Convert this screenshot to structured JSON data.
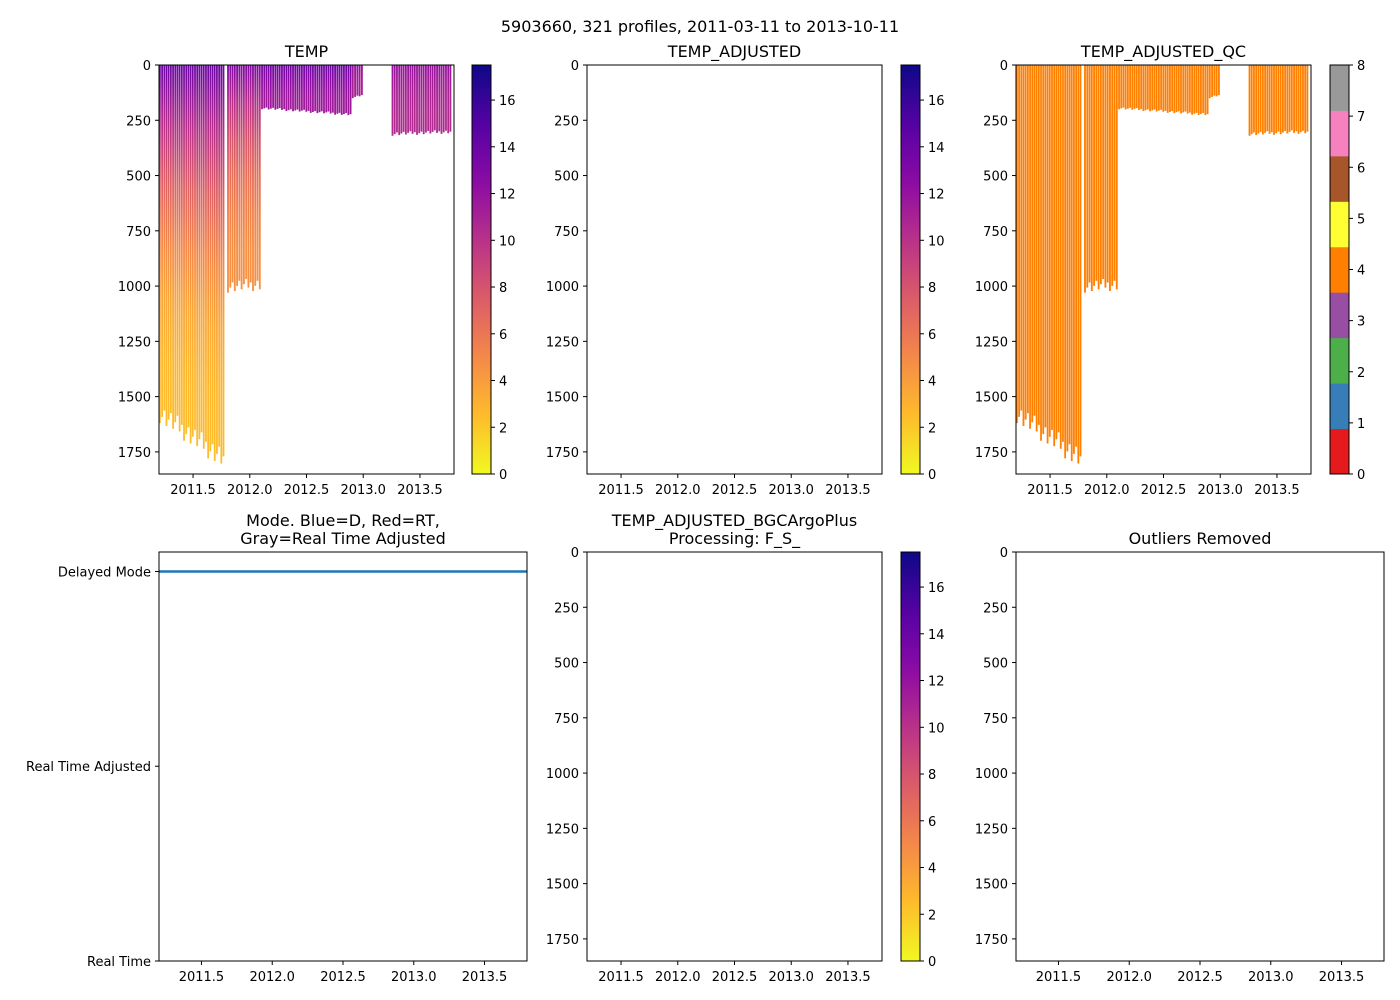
{
  "suptitle": "5903660, 321 profiles, 2011-03-11 to 2013-10-11",
  "chart_data": [
    {
      "id": "temp",
      "type": "heatmap",
      "title": "TEMP",
      "xlim": [
        2011.2,
        2013.8
      ],
      "xticks": [
        2011.5,
        2012.0,
        2012.5,
        2013.0,
        2013.5
      ],
      "xtick_labels": [
        "2011.5",
        "2012.0",
        "2012.5",
        "2013.0",
        "2013.5"
      ],
      "ylim": [
        1850,
        0
      ],
      "yticks": [
        0,
        250,
        500,
        750,
        1000,
        1250,
        1500,
        1750
      ],
      "ytick_labels": [
        "0",
        "250",
        "500",
        "750",
        "1000",
        "1250",
        "1500",
        "1750"
      ],
      "colorbar": {
        "colormap": "plasma_r",
        "range": [
          0,
          17.5
        ],
        "ticks": [
          0,
          2,
          4,
          6,
          8,
          10,
          12,
          14,
          16
        ],
        "tick_labels": [
          "0",
          "2",
          "4",
          "6",
          "8",
          "10",
          "12",
          "14",
          "16"
        ]
      },
      "profile_groups": [
        {
          "x_start": 2011.2,
          "x_end": 2011.78,
          "max_depth_start": 1620,
          "max_depth_end": 1830,
          "surface_temp": 14,
          "deep_temp": 2.5
        },
        {
          "x_start": 2011.8,
          "x_end": 2012.1,
          "max_depth_start": 1030,
          "max_depth_end": 1020,
          "surface_temp": 13,
          "deep_temp": 4.5
        },
        {
          "x_start": 2012.1,
          "x_end": 2012.9,
          "max_depth_start": 200,
          "max_depth_end": 230,
          "surface_temp": 14,
          "deep_temp": 11.5
        },
        {
          "x_start": 2012.9,
          "x_end": 2013.0,
          "max_depth_start": 150,
          "max_depth_end": 140,
          "surface_temp": 12,
          "deep_temp": 11
        },
        {
          "x_start": 2013.25,
          "x_end": 2013.78,
          "max_depth_start": 320,
          "max_depth_end": 310,
          "surface_temp": 12,
          "deep_temp": 10.5
        }
      ]
    },
    {
      "id": "temp_adjusted",
      "type": "heatmap",
      "title": "TEMP_ADJUSTED",
      "xlim": [
        2011.2,
        2013.8
      ],
      "xticks": [
        2011.5,
        2012.0,
        2012.5,
        2013.0,
        2013.5
      ],
      "xtick_labels": [
        "2011.5",
        "2012.0",
        "2012.5",
        "2013.0",
        "2013.5"
      ],
      "ylim": [
        1850,
        0
      ],
      "yticks": [
        0,
        250,
        500,
        750,
        1000,
        1250,
        1500,
        1750
      ],
      "ytick_labels": [
        "0",
        "250",
        "500",
        "750",
        "1000",
        "1250",
        "1500",
        "1750"
      ],
      "colorbar": {
        "colormap": "plasma_r",
        "range": [
          0,
          17.5
        ],
        "ticks": [
          0,
          2,
          4,
          6,
          8,
          10,
          12,
          14,
          16
        ],
        "tick_labels": [
          "0",
          "2",
          "4",
          "6",
          "8",
          "10",
          "12",
          "14",
          "16"
        ]
      },
      "profile_groups": []
    },
    {
      "id": "temp_adjusted_qc",
      "type": "heatmap",
      "title": "TEMP_ADJUSTED_QC",
      "xlim": [
        2011.2,
        2013.8
      ],
      "xticks": [
        2011.5,
        2012.0,
        2012.5,
        2013.0,
        2013.5
      ],
      "xtick_labels": [
        "2011.5",
        "2012.0",
        "2012.5",
        "2013.0",
        "2013.5"
      ],
      "ylim": [
        1850,
        0
      ],
      "yticks": [
        0,
        250,
        500,
        750,
        1000,
        1250,
        1500,
        1750
      ],
      "ytick_labels": [
        "0",
        "250",
        "500",
        "750",
        "1000",
        "1250",
        "1500",
        "1750"
      ],
      "qc_value": 4,
      "colorbar": {
        "colormap": "discrete",
        "range": [
          0,
          8
        ],
        "colors": [
          "#e41a1c",
          "#377eb8",
          "#4daf4a",
          "#984ea3",
          "#ff7f00",
          "#ffff33",
          "#a65628",
          "#f781bf",
          "#999999"
        ],
        "ticks": [
          0,
          1,
          2,
          3,
          4,
          5,
          6,
          7,
          8
        ],
        "tick_labels": [
          "0",
          "1",
          "2",
          "3",
          "4",
          "5",
          "6",
          "7",
          "8"
        ]
      },
      "profile_groups": [
        {
          "x_start": 2011.2,
          "x_end": 2011.78,
          "max_depth_start": 1620,
          "max_depth_end": 1830,
          "surface_temp": 4,
          "deep_temp": 4
        },
        {
          "x_start": 2011.8,
          "x_end": 2012.1,
          "max_depth_start": 1030,
          "max_depth_end": 1020,
          "surface_temp": 4,
          "deep_temp": 4
        },
        {
          "x_start": 2012.1,
          "x_end": 2012.9,
          "max_depth_start": 200,
          "max_depth_end": 230,
          "surface_temp": 4,
          "deep_temp": 4
        },
        {
          "x_start": 2012.9,
          "x_end": 2013.0,
          "max_depth_start": 150,
          "max_depth_end": 140,
          "surface_temp": 4,
          "deep_temp": 4
        },
        {
          "x_start": 2013.25,
          "x_end": 2013.78,
          "max_depth_start": 320,
          "max_depth_end": 310,
          "surface_temp": 4,
          "deep_temp": 4
        }
      ]
    },
    {
      "id": "mode",
      "type": "line",
      "title_lines": [
        "Mode. Blue=D, Red=RT,",
        "Gray=Real Time Adjusted"
      ],
      "xlim": [
        2011.2,
        2013.8
      ],
      "xticks": [
        2011.5,
        2012.0,
        2012.5,
        2013.0,
        2013.5
      ],
      "xtick_labels": [
        "2011.5",
        "2012.0",
        "2012.5",
        "2013.0",
        "2013.5"
      ],
      "ylim": [
        0,
        2.1
      ],
      "yticks": [
        0,
        1,
        2
      ],
      "ytick_labels": [
        "Real Time",
        "Real Time Adjusted",
        "Delayed Mode"
      ],
      "series": [
        {
          "name": "Delayed Mode",
          "color": "#1f77b4",
          "x": [
            2011.2,
            2013.8
          ],
          "y": [
            2,
            2
          ]
        }
      ]
    },
    {
      "id": "bgc",
      "type": "heatmap",
      "title_lines": [
        "TEMP_ADJUSTED_BGCArgoPlus",
        "Processing: F_S_"
      ],
      "xlim": [
        2011.2,
        2013.8
      ],
      "xticks": [
        2011.5,
        2012.0,
        2012.5,
        2013.0,
        2013.5
      ],
      "xtick_labels": [
        "2011.5",
        "2012.0",
        "2012.5",
        "2013.0",
        "2013.5"
      ],
      "ylim": [
        1850,
        0
      ],
      "yticks": [
        0,
        250,
        500,
        750,
        1000,
        1250,
        1500,
        1750
      ],
      "ytick_labels": [
        "0",
        "250",
        "500",
        "750",
        "1000",
        "1250",
        "1500",
        "1750"
      ],
      "colorbar": {
        "colormap": "plasma_r",
        "range": [
          0,
          17.5
        ],
        "ticks": [
          0,
          2,
          4,
          6,
          8,
          10,
          12,
          14,
          16
        ],
        "tick_labels": [
          "0",
          "2",
          "4",
          "6",
          "8",
          "10",
          "12",
          "14",
          "16"
        ]
      },
      "profile_groups": []
    },
    {
      "id": "outliers",
      "type": "heatmap",
      "title": "Outliers Removed",
      "xlim": [
        2011.2,
        2013.8
      ],
      "xticks": [
        2011.5,
        2012.0,
        2012.5,
        2013.0,
        2013.5
      ],
      "xtick_labels": [
        "2011.5",
        "2012.0",
        "2012.5",
        "2013.0",
        "2013.5"
      ],
      "ylim": [
        1850,
        0
      ],
      "yticks": [
        0,
        250,
        500,
        750,
        1000,
        1250,
        1500,
        1750
      ],
      "ytick_labels": [
        "0",
        "250",
        "500",
        "750",
        "1000",
        "1250",
        "1500",
        "1750"
      ],
      "profile_groups": []
    }
  ]
}
